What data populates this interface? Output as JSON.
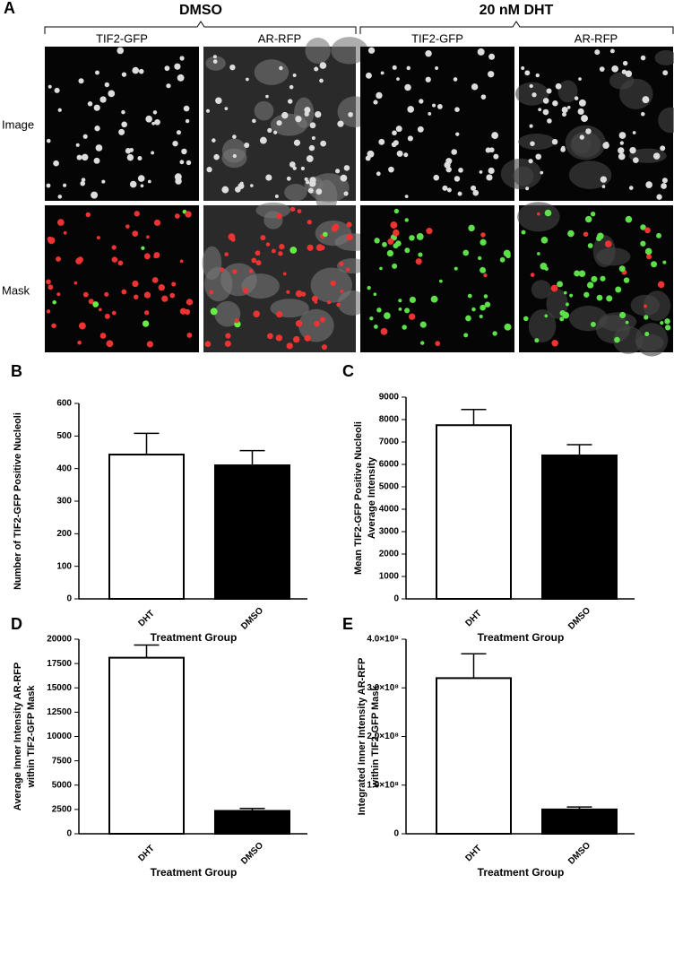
{
  "figure_a": {
    "panel": "A",
    "groups": [
      "DMSO",
      "20 nM DHT"
    ],
    "channels": [
      "TIF2-GFP",
      "AR-RFP",
      "TIF2-GFP",
      "AR-RFP"
    ],
    "rows": [
      "Image",
      "Mask"
    ]
  },
  "chart_data": [
    {
      "type": "bar",
      "panel": "B",
      "ylabel": [
        "Number of TIF2-GFP Positive Nucleoli"
      ],
      "xlabel": "Treatment Group",
      "categories": [
        "DHT",
        "DMSO"
      ],
      "values": [
        443,
        410
      ],
      "errors": [
        65,
        45
      ],
      "colors": [
        "#ffffff",
        "#000000"
      ],
      "ylim": [
        0,
        600
      ],
      "yticks": [
        0,
        100,
        200,
        300,
        400,
        500,
        600
      ]
    },
    {
      "type": "bar",
      "panel": "C",
      "ylabel": [
        "Mean TIF2-GFP Positive Nucleoli",
        "Average Intensity"
      ],
      "xlabel": "Treatment Group",
      "categories": [
        "DHT",
        "DMSO"
      ],
      "values": [
        7750,
        6400
      ],
      "errors": [
        700,
        480
      ],
      "colors": [
        "#ffffff",
        "#000000"
      ],
      "ylim": [
        0,
        9000
      ],
      "yticks": [
        0,
        1000,
        2000,
        3000,
        4000,
        5000,
        6000,
        7000,
        8000,
        9000
      ]
    },
    {
      "type": "bar",
      "panel": "D",
      "ylabel": [
        "Average Inner Intensity AR-RFP",
        "within TIF2-GFP Mask"
      ],
      "xlabel": "Treatment Group",
      "categories": [
        "DHT",
        "DMSO"
      ],
      "values": [
        18100,
        2350
      ],
      "errors": [
        1300,
        250
      ],
      "colors": [
        "#ffffff",
        "#000000"
      ],
      "ylim": [
        0,
        20000
      ],
      "yticks": [
        0,
        2500,
        5000,
        7500,
        10000,
        12500,
        15000,
        17500,
        20000
      ]
    },
    {
      "type": "bar",
      "panel": "E",
      "ylabel": [
        "Integrated Inner Intensity AR-RFP",
        "within TIF2-GFP Mask"
      ],
      "xlabel": "Treatment Group",
      "categories": [
        "DHT",
        "DMSO"
      ],
      "values": [
        320000000,
        50000000
      ],
      "errors": [
        50000000,
        5000000
      ],
      "colors": [
        "#ffffff",
        "#000000"
      ],
      "ylim": [
        0,
        400000000
      ],
      "yticks": [
        0,
        {
          "value": 100000000,
          "label": "1.0×10⁸"
        },
        {
          "value": 200000000,
          "label": "2.0×10⁸"
        },
        {
          "value": 300000000,
          "label": "3.0×10⁸"
        },
        {
          "value": 400000000,
          "label": "4.0×10⁸"
        }
      ]
    }
  ]
}
